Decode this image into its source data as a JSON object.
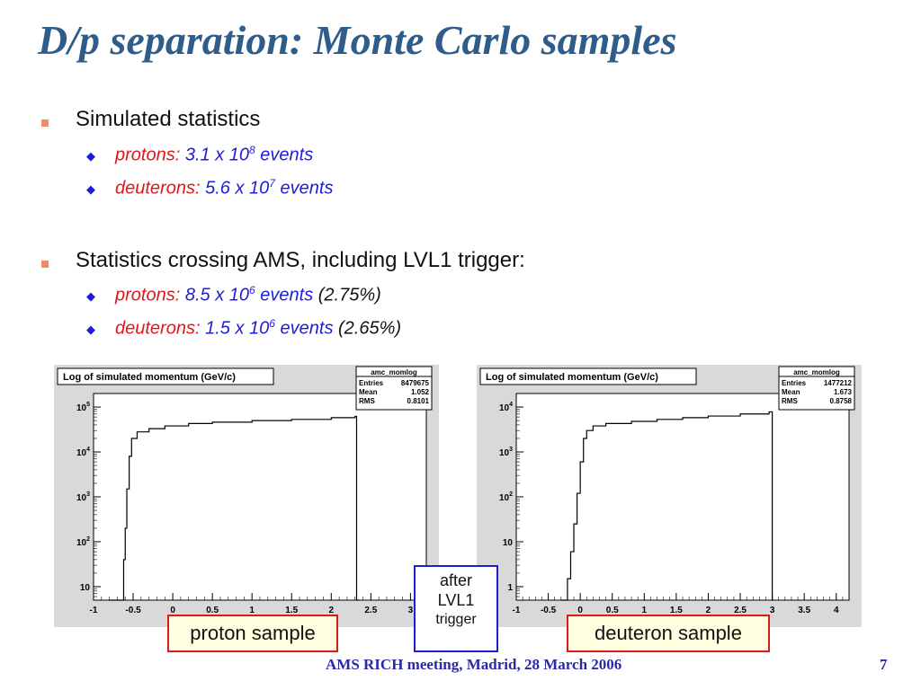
{
  "slide": {
    "title": "D/p separation: Monte Carlo samples",
    "footer": "AMS RICH meeting, Madrid, 28 March 2006",
    "page_number": "7"
  },
  "bullets": [
    {
      "text": "Simulated statistics",
      "sub": [
        {
          "particle": "protons",
          "sep": ":",
          "count": "3.1 x 10",
          "exp": "8",
          "unit": "events",
          "extra": ""
        },
        {
          "particle": "deuterons",
          "sep": ":",
          "count": "5.6 x 10",
          "exp": "7",
          "unit": "events",
          "extra": ""
        }
      ]
    },
    {
      "text": "Statistics crossing AMS, including LVL1 trigger:",
      "sub": [
        {
          "particle": "protons",
          "sep": ":",
          "count": "8.5 x 10",
          "exp": "6",
          "unit": "events",
          "extra": "(2.75%)"
        },
        {
          "particle": "deuterons",
          "sep": ":",
          "count": "1.5 x 10",
          "exp": "6",
          "unit": "events",
          "extra": "(2.65%)"
        }
      ]
    }
  ],
  "labels": {
    "proton_sample": "proton sample",
    "deuteron_sample": "deuteron sample",
    "trigger_note": [
      "after",
      "LVL1",
      "trigger"
    ]
  },
  "colors": {
    "title": "#2e5d8c",
    "bullet_square": "#f08c5a",
    "particle": "#e0171b",
    "value": "#1d1dd6",
    "frame_red": "#e0171b",
    "frame_blue": "#1d1dd6"
  },
  "chart_data": [
    {
      "type": "line",
      "title": "Log of simulated momentum (GeV/c)",
      "stats": {
        "name": "amc_momlog",
        "Entries": "8479675",
        "Mean": "1.052",
        "RMS": "0.8101"
      },
      "xlim": [
        -1,
        3.2
      ],
      "xticks": [
        "-1",
        "-0.5",
        "0",
        "0.5",
        "1",
        "1.5",
        "2",
        "2.5",
        "3"
      ],
      "xtick_values": [
        -1,
        -0.5,
        0,
        0.5,
        1,
        1.5,
        2,
        2.5,
        3
      ],
      "ylim": [
        5,
        200000
      ],
      "log_y": true,
      "yticks": [
        {
          "base": "10",
          "exp": "5",
          "v": 100000
        },
        {
          "base": "10",
          "exp": "4",
          "v": 10000
        },
        {
          "base": "10",
          "exp": "3",
          "v": 1000
        },
        {
          "base": "10",
          "exp": "2",
          "v": 100
        },
        {
          "base": "10",
          "exp": "",
          "v": 10
        }
      ],
      "x": [
        -0.8,
        -0.65,
        -0.62,
        -0.6,
        -0.58,
        -0.55,
        -0.52,
        -0.45,
        -0.3,
        -0.1,
        0.2,
        0.5,
        1.0,
        1.5,
        2.0,
        2.3,
        2.32,
        2.35
      ],
      "y": [
        5,
        5,
        40,
        200,
        1500,
        8000,
        20000,
        28000,
        33000,
        38000,
        43000,
        46000,
        50000,
        53000,
        58000,
        62000,
        5,
        5
      ]
    },
    {
      "type": "line",
      "title": "Log of simulated momentum (GeV/c)",
      "stats": {
        "name": "amc_momlog",
        "Entries": "1477212",
        "Mean": "1.673",
        "RMS": "0.8758"
      },
      "xlim": [
        -1,
        4.2
      ],
      "xticks": [
        "-1",
        "-0.5",
        "0",
        "0.5",
        "1",
        "1.5",
        "2",
        "2.5",
        "3",
        "3.5",
        "4"
      ],
      "xtick_values": [
        -1,
        -0.5,
        0,
        0.5,
        1,
        1.5,
        2,
        2.5,
        3,
        3.5,
        4
      ],
      "ylim": [
        0.5,
        20000
      ],
      "log_y": true,
      "yticks": [
        {
          "base": "10",
          "exp": "4",
          "v": 10000
        },
        {
          "base": "10",
          "exp": "3",
          "v": 1000
        },
        {
          "base": "10",
          "exp": "2",
          "v": 100
        },
        {
          "base": "10",
          "exp": "",
          "v": 10
        },
        {
          "base": "1",
          "exp": "",
          "v": 1
        }
      ],
      "x": [
        -0.3,
        -0.2,
        -0.15,
        -0.1,
        -0.05,
        0.0,
        0.05,
        0.1,
        0.2,
        0.4,
        0.8,
        1.2,
        1.6,
        2.0,
        2.5,
        2.95,
        3.0,
        3.02
      ],
      "y": [
        0.5,
        1.5,
        6,
        25,
        120,
        600,
        2000,
        3000,
        3800,
        4300,
        4800,
        5300,
        5800,
        6300,
        7000,
        7800,
        0.5,
        0.5
      ]
    }
  ]
}
